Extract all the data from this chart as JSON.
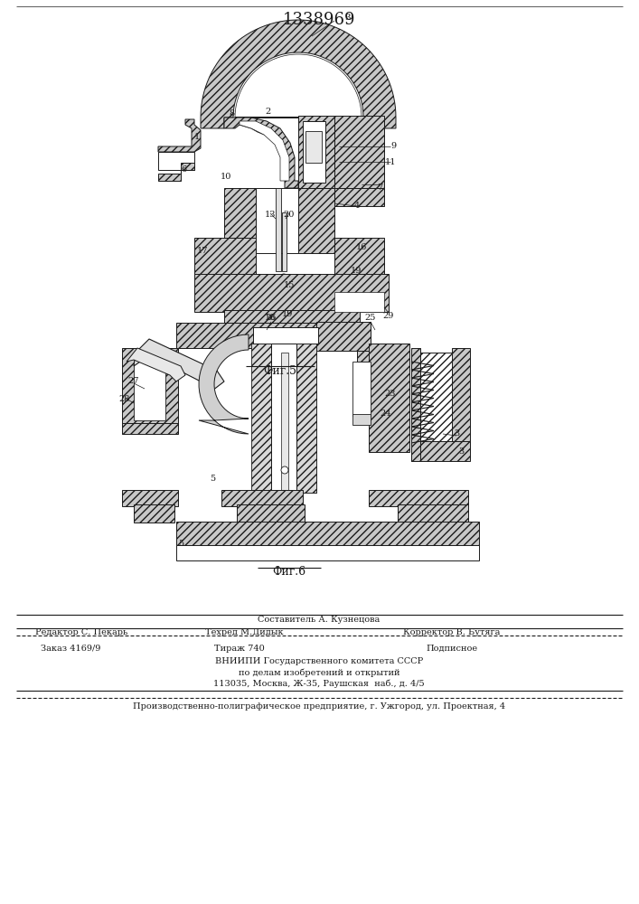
{
  "title": "1338969",
  "title_fontsize": 13,
  "fig1_caption": "Фиг.5",
  "fig2_caption": "Фиг.6",
  "bg_color": "#ffffff",
  "line_color": "#1a1a1a",
  "hatch_color": "#333333",
  "gray_light": "#d8d8d8",
  "gray_mid": "#b0b0b0",
  "white": "#ffffff"
}
